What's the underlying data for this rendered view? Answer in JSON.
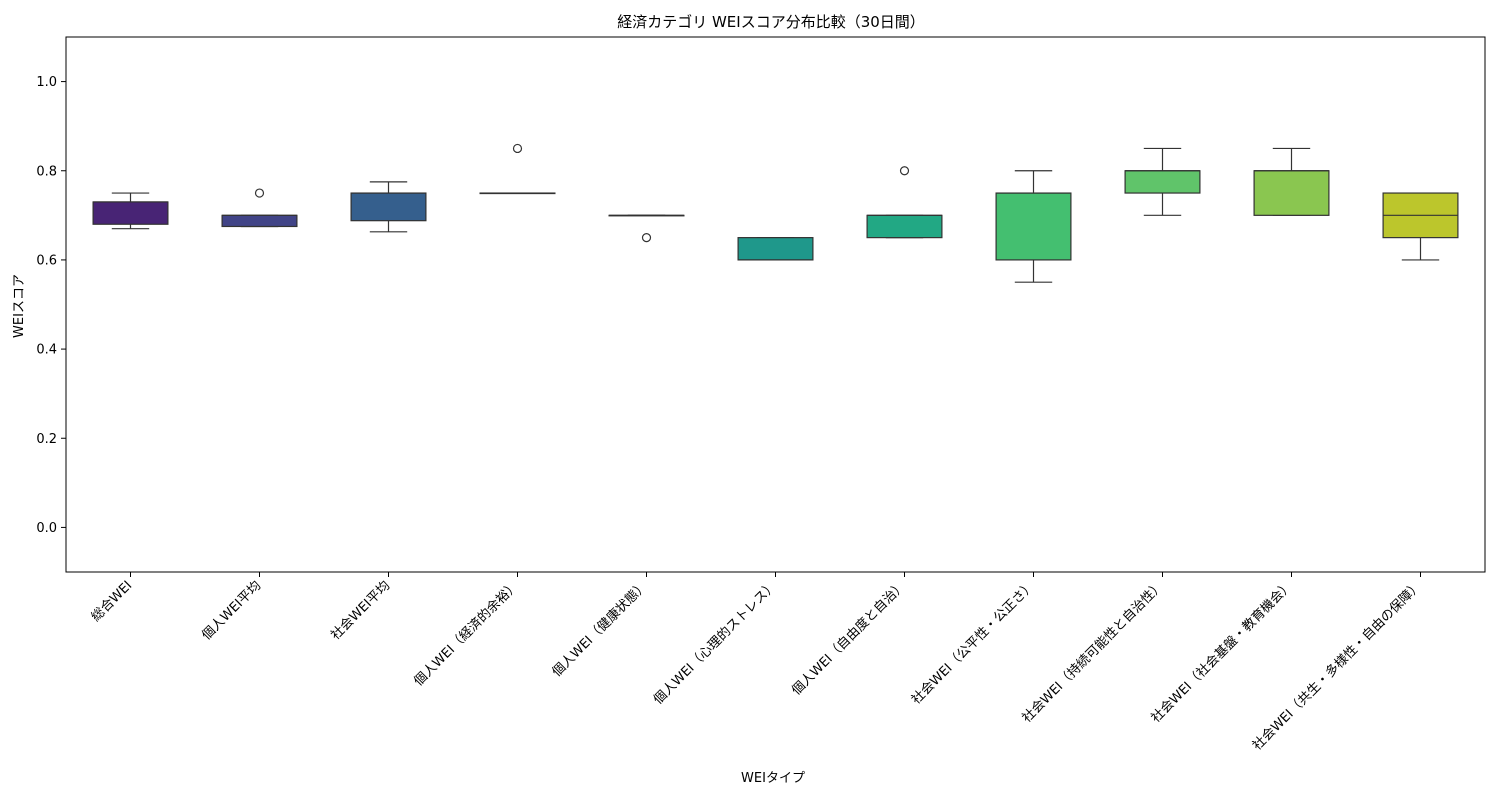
{
  "chart_data": {
    "type": "box",
    "title": "経済カテゴリ WEIスコア分布比較（30日間）",
    "xlabel": "WEIタイプ",
    "ylabel": "WEIスコア",
    "ylim": [
      -0.1,
      1.1
    ],
    "yticks": [
      "0.0",
      "0.2",
      "0.4",
      "0.6",
      "0.8",
      "1.0"
    ],
    "grid": false,
    "categories": [
      "総合WEI",
      "個人WEI平均",
      "社会WEI平均",
      "個人WEI（経済的余裕）",
      "個人WEI（健康状態）",
      "個人WEI（心理的ストレス）",
      "個人WEI（自由度と自治）",
      "社会WEI（公平性・公正さ）",
      "社会WEI（持続可能性と自治性）",
      "社会WEI（社会基盤・教育機会）",
      "社会WEI（共生・多様性・自由の保障）"
    ],
    "boxes": [
      {
        "whisker_low": 0.67,
        "q1": 0.68,
        "median": 0.73,
        "q3": 0.73,
        "whisker_high": 0.75,
        "outliers": [],
        "color": "#482475"
      },
      {
        "whisker_low": 0.675,
        "q1": 0.675,
        "median": 0.7,
        "q3": 0.7,
        "whisker_high": 0.7,
        "outliers": [
          0.75
        ],
        "color": "#414487"
      },
      {
        "whisker_low": 0.663,
        "q1": 0.688,
        "median": 0.75,
        "q3": 0.75,
        "whisker_high": 0.775,
        "outliers": [],
        "color": "#355f8d"
      },
      {
        "whisker_low": 0.75,
        "q1": 0.75,
        "median": 0.75,
        "q3": 0.75,
        "whisker_high": 0.75,
        "outliers": [
          0.85
        ],
        "color": "#2a788e"
      },
      {
        "whisker_low": 0.7,
        "q1": 0.7,
        "median": 0.7,
        "q3": 0.7,
        "whisker_high": 0.7,
        "outliers": [
          0.65
        ],
        "color": "#21918c"
      },
      {
        "whisker_low": 0.6,
        "q1": 0.6,
        "median": 0.6,
        "q3": 0.65,
        "whisker_high": 0.65,
        "outliers": [],
        "color": "#1f988b"
      },
      {
        "whisker_low": 0.65,
        "q1": 0.65,
        "median": 0.7,
        "q3": 0.7,
        "whisker_high": 0.7,
        "outliers": [
          0.8
        ],
        "color": "#22a884"
      },
      {
        "whisker_low": 0.55,
        "q1": 0.6,
        "median": 0.75,
        "q3": 0.75,
        "whisker_high": 0.8,
        "outliers": [],
        "color": "#44bf70"
      },
      {
        "whisker_low": 0.7,
        "q1": 0.75,
        "median": 0.8,
        "q3": 0.8,
        "whisker_high": 0.85,
        "outliers": [],
        "color": "#60c46a"
      },
      {
        "whisker_low": 0.7,
        "q1": 0.7,
        "median": 0.8,
        "q3": 0.8,
        "whisker_high": 0.85,
        "outliers": [],
        "color": "#8ac650"
      },
      {
        "whisker_low": 0.6,
        "q1": 0.65,
        "median": 0.7,
        "q3": 0.75,
        "whisker_high": 0.75,
        "outliers": [],
        "color": "#bcc62c"
      }
    ]
  }
}
